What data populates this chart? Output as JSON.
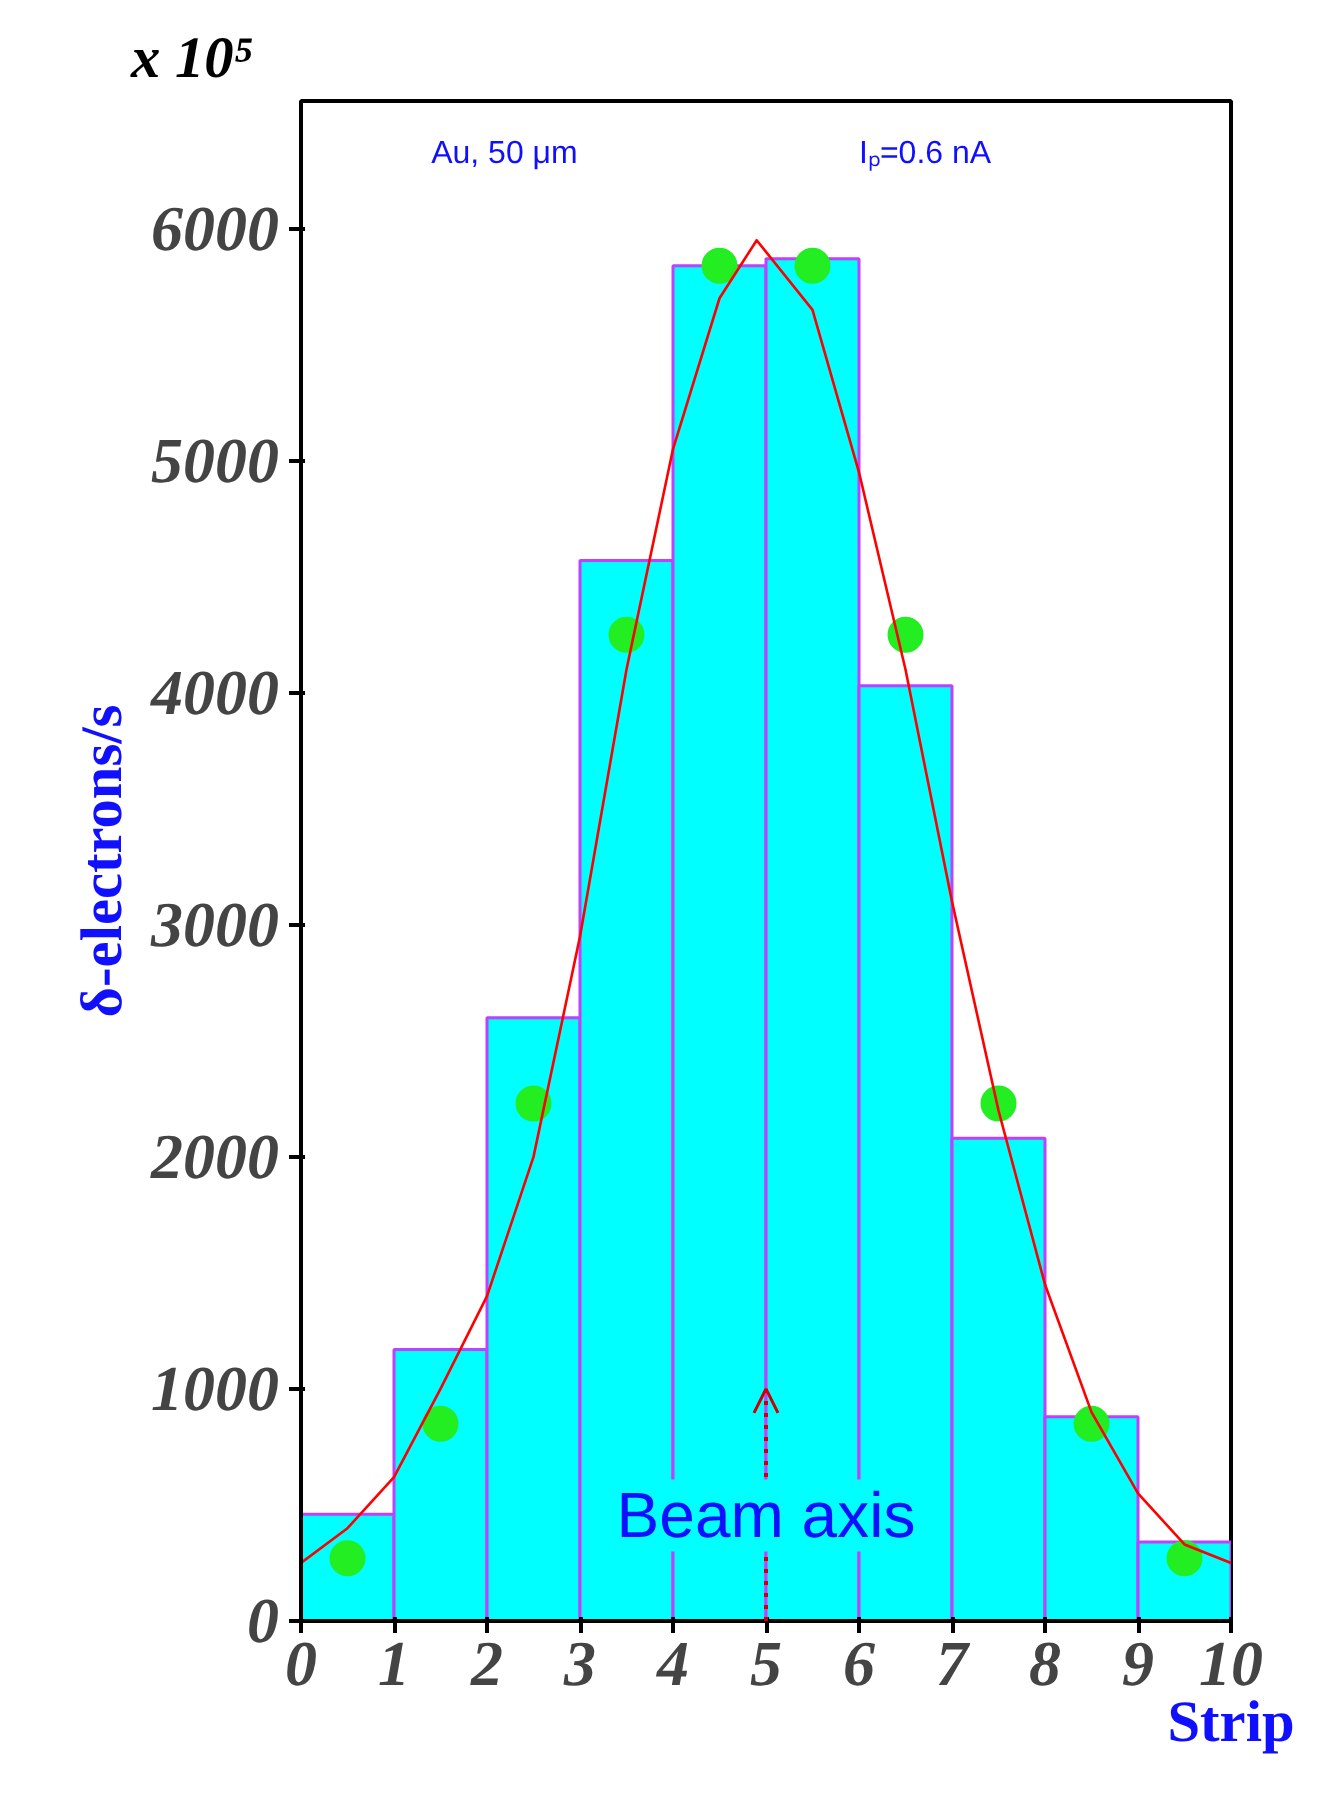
{
  "chart_data": {
    "type": "histogram",
    "xlabel": "Strip",
    "ylabel": "δ-electrons/s",
    "annotations": [
      "x 10⁵",
      "Au, 50 μm",
      "Iₚ=0.6 nA",
      {
        "text": "Beam axis",
        "x": 5,
        "y": 1000
      }
    ],
    "xlim": [
      0,
      10
    ],
    "ylim": [
      0,
      6550
    ],
    "xticks": [
      0,
      1,
      2,
      3,
      4,
      5,
      6,
      7,
      8,
      9,
      10
    ],
    "yticks": [
      0,
      1000,
      2000,
      3000,
      4000,
      5000,
      6000
    ],
    "grid": false,
    "series": [
      {
        "bins": [
          0,
          1,
          2,
          3,
          4,
          5,
          6,
          7,
          8,
          9,
          10
        ],
        "values": [
          460,
          1170,
          2600,
          4570,
          5840,
          5870,
          4030,
          2080,
          880,
          340
        ],
        "color": "#00ffff"
      },
      {
        "type": "scatter",
        "x": [
          0.5,
          1.5,
          2.5,
          3.5,
          4.5,
          5.5,
          6.5,
          7.5,
          8.5,
          9.5
        ],
        "values": [
          270,
          850,
          2230,
          4250,
          5840,
          5840,
          4250,
          2230,
          850,
          270
        ],
        "color": "#22ee22",
        "marker": "circle"
      },
      {
        "type": "line",
        "x": [
          0,
          0.5,
          1,
          1.5,
          2,
          2.5,
          3,
          3.5,
          4,
          4.5,
          4.9,
          5.5,
          6,
          6.5,
          7,
          7.5,
          8,
          8.5,
          9,
          9.5,
          10
        ],
        "values": [
          250,
          400,
          620,
          1000,
          1400,
          2000,
          2950,
          4100,
          5050,
          5700,
          5950,
          5650,
          4950,
          4100,
          3100,
          2200,
          1450,
          900,
          550,
          330,
          250
        ],
        "color": "#ff0000",
        "line_style": "solid"
      }
    ]
  }
}
